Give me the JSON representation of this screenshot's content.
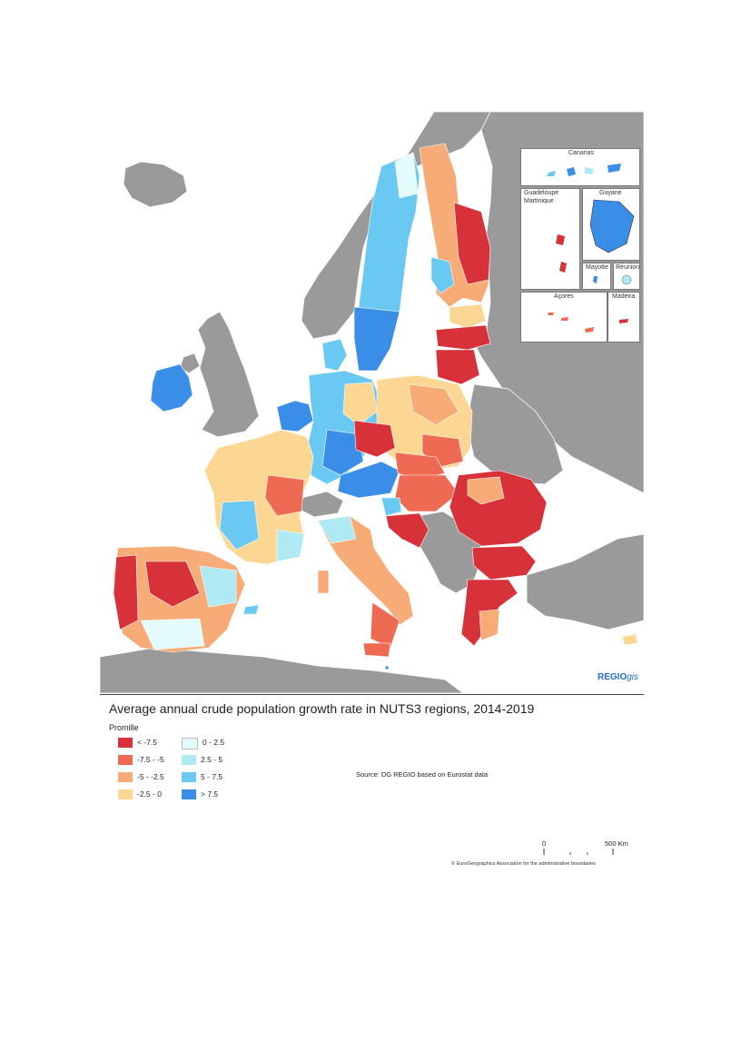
{
  "map": {
    "title": "Average annual crude population growth rate in NUTS3 regions, 2014-2019",
    "legend_title": "Promille",
    "legend": [
      {
        "label": "< -7.5",
        "color": "#d7313a"
      },
      {
        "label": "-7.5 - -5",
        "color": "#ef6a52"
      },
      {
        "label": "-5 - -2.5",
        "color": "#f7ab76"
      },
      {
        "label": "-2.5 - 0",
        "color": "#fcd794"
      },
      {
        "label": "0 - 2.5",
        "color": "#e4fbfb"
      },
      {
        "label": "2.5 - 5",
        "color": "#aee9f4"
      },
      {
        "label": "5 - 7.5",
        "color": "#6ac9f2"
      },
      {
        "label": "> 7.5",
        "color": "#3b8ee8"
      }
    ],
    "non_eu_color": "#9a9a9a",
    "source": "Source: DG REGIO based on Eurostat data",
    "logo_main": "REGIO",
    "logo_suffix": "gis",
    "scale_zero": "0",
    "scale_max": "500 Km",
    "copyright": "© EuroGeographics Association for the administrative boundaries",
    "insets": {
      "canarias": "Canarias",
      "guadeloupe": "Guadeloupe",
      "martinique": "Martinique",
      "guyane": "Guyane",
      "mayotte": "Mayotte",
      "reunion": "Réunion",
      "acores": "Açores",
      "madeira": "Madeira"
    }
  }
}
